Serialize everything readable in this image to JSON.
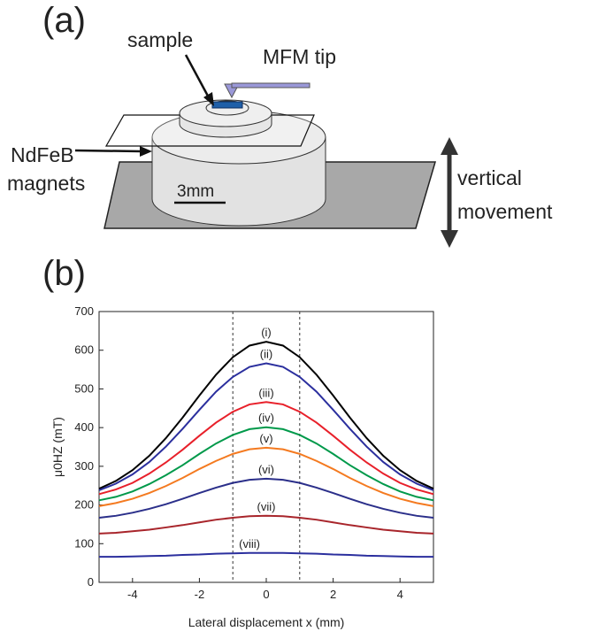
{
  "diagram": {
    "panel_label": "(a)",
    "labels": [
      "sample",
      "MFM tip",
      "NdFeB",
      "magnets",
      "3mm",
      "vertical",
      "movement"
    ]
  },
  "chart_data": {
    "type": "line",
    "panel_label": "(b)",
    "x_label": "Lateral displacement x (mm)",
    "y_label": "μ0HZ (mT)",
    "xlim": [
      -5,
      5
    ],
    "ylim": [
      0,
      700
    ],
    "xticks": [
      -4,
      -2,
      0,
      2,
      4
    ],
    "yticks": [
      0,
      100,
      200,
      300,
      400,
      500,
      600,
      700
    ],
    "vlines": [
      -1,
      1
    ],
    "x": [
      -5,
      -4.5,
      -4,
      -3.5,
      -3,
      -2.5,
      -2,
      -1.5,
      -1,
      -0.5,
      0,
      0.5,
      1,
      1.5,
      2,
      2.5,
      3,
      3.5,
      4,
      4.5,
      5
    ],
    "series": [
      {
        "name": "(i)",
        "color": "#000000",
        "values": [
          242,
          262,
          290,
          327,
          373,
          426,
          483,
          537,
          582,
          612,
          622,
          612,
          582,
          537,
          483,
          426,
          373,
          327,
          290,
          262,
          242
        ]
      },
      {
        "name": "(ii)",
        "color": "#2b2f9e",
        "values": [
          238,
          255,
          279,
          311,
          351,
          397,
          446,
          493,
          531,
          557,
          566,
          557,
          531,
          493,
          446,
          397,
          351,
          311,
          279,
          255,
          238
        ]
      },
      {
        "name": "(iii)",
        "color": "#e8202a",
        "values": [
          228,
          240,
          257,
          281,
          310,
          343,
          379,
          413,
          441,
          460,
          466,
          460,
          441,
          413,
          379,
          343,
          310,
          281,
          257,
          240,
          228
        ]
      },
      {
        "name": "(iv)",
        "color": "#00994a",
        "values": [
          212,
          221,
          235,
          254,
          277,
          303,
          332,
          359,
          381,
          396,
          401,
          396,
          381,
          359,
          332,
          303,
          277,
          254,
          235,
          221,
          212
        ]
      },
      {
        "name": "(v)",
        "color": "#f47a20",
        "values": [
          197,
          205,
          216,
          231,
          249,
          270,
          293,
          314,
          332,
          344,
          348,
          344,
          332,
          314,
          293,
          270,
          249,
          231,
          216,
          205,
          197
        ]
      },
      {
        "name": "(vi)",
        "color": "#2b2f8a",
        "values": [
          167,
          172,
          180,
          190,
          202,
          216,
          231,
          245,
          257,
          265,
          268,
          265,
          257,
          245,
          231,
          216,
          202,
          190,
          180,
          172,
          167
        ]
      },
      {
        "name": "(vii)",
        "color": "#a8252b",
        "values": [
          126,
          128,
          132,
          136,
          142,
          148,
          155,
          162,
          167,
          171,
          172,
          171,
          167,
          162,
          155,
          148,
          142,
          136,
          132,
          128,
          126
        ]
      },
      {
        "name": "(viii)",
        "color": "#2b2f9e",
        "values": [
          66,
          66,
          67,
          68,
          69,
          71,
          72,
          74,
          75,
          76,
          76,
          76,
          75,
          74,
          72,
          71,
          69,
          68,
          67,
          66,
          66
        ]
      }
    ]
  }
}
